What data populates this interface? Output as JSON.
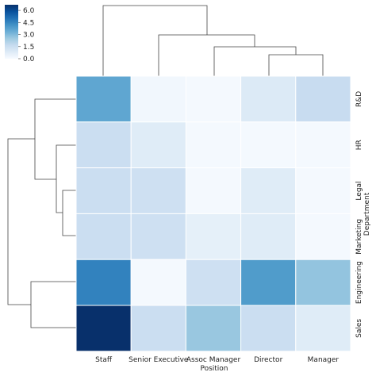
{
  "chart_data": {
    "type": "heatmap",
    "title": "",
    "xlabel": "Position",
    "ylabel": "Department",
    "columns": [
      "Staff",
      "Senior Executive",
      "Assoc Manager",
      "Director",
      "Manager"
    ],
    "rows": [
      "R&D",
      "HR",
      "Legal",
      "Marketing",
      "Engineering",
      "Sales"
    ],
    "values": [
      [
        3.6,
        0.2,
        0.1,
        0.9,
        1.6
      ],
      [
        1.5,
        0.8,
        0.1,
        0.1,
        0.1
      ],
      [
        1.5,
        1.4,
        0.1,
        0.8,
        0.1
      ],
      [
        1.5,
        1.4,
        0.6,
        0.8,
        0.1
      ],
      [
        4.6,
        0.1,
        1.4,
        3.9,
        2.7
      ],
      [
        6.7,
        1.5,
        2.6,
        1.5,
        0.8
      ]
    ],
    "colorbar": {
      "min": 0.0,
      "max": 6.7,
      "ticks": [
        0.0,
        1.5,
        3.0,
        4.5,
        6.0
      ],
      "tick_labels": [
        "0.0",
        "1.5",
        "3.0",
        "4.5",
        "6.0"
      ],
      "colormap": "Blues",
      "colors": [
        "#f7fbff",
        "#deebf7",
        "#c6dbef",
        "#9ecae1",
        "#6baed6",
        "#4292c6",
        "#2171b5",
        "#08519c",
        "#08306b"
      ]
    },
    "row_dendrogram": true,
    "column_dendrogram": true,
    "cell_border_color": "#ffffff",
    "dendrogram_color": "#444444"
  }
}
